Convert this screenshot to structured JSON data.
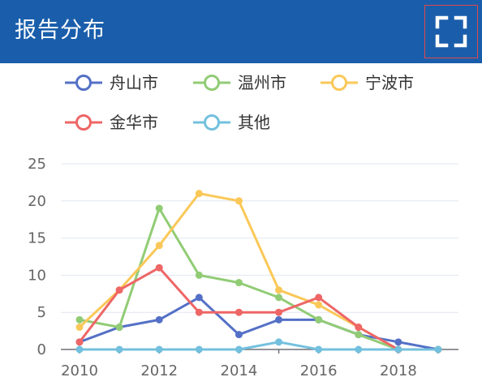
{
  "header": {
    "title": "报告分布",
    "fullscreen_icon": "expand-icon"
  },
  "colors": {
    "header_bg": "#1a5eab",
    "舟山市": "#5470c6",
    "温州市": "#91cc75",
    "宁波市": "#fac858",
    "金华市": "#ee6666",
    "其他": "#73c0de"
  },
  "chart_data": {
    "type": "line",
    "x": [
      2010,
      2011,
      2012,
      2013,
      2014,
      2015,
      2016,
      2017,
      2018,
      2019
    ],
    "xticks": [
      "2010",
      "2012",
      "2014",
      "2016",
      "2018"
    ],
    "yticks": [
      "0",
      "5",
      "10",
      "15",
      "20",
      "25"
    ],
    "ylim": [
      0,
      25
    ],
    "grid": "horizontal",
    "legend": "top",
    "series": [
      {
        "name": "舟山市",
        "color": "#5470c6",
        "values": [
          1,
          3,
          4,
          7,
          2,
          4,
          4,
          2,
          1,
          0
        ]
      },
      {
        "name": "温州市",
        "color": "#91cc75",
        "values": [
          4,
          3,
          19,
          10,
          9,
          7,
          4,
          2,
          0,
          0
        ]
      },
      {
        "name": "宁波市",
        "color": "#fac858",
        "values": [
          3,
          8,
          14,
          21,
          20,
          8,
          6,
          3,
          0,
          0
        ]
      },
      {
        "name": "金华市",
        "color": "#ee6666",
        "values": [
          1,
          8,
          11,
          5,
          5,
          5,
          7,
          3,
          0,
          null
        ]
      },
      {
        "name": "其他",
        "color": "#73c0de",
        "values": [
          0,
          0,
          0,
          0,
          0,
          1,
          0,
          0,
          0,
          0
        ]
      }
    ]
  }
}
